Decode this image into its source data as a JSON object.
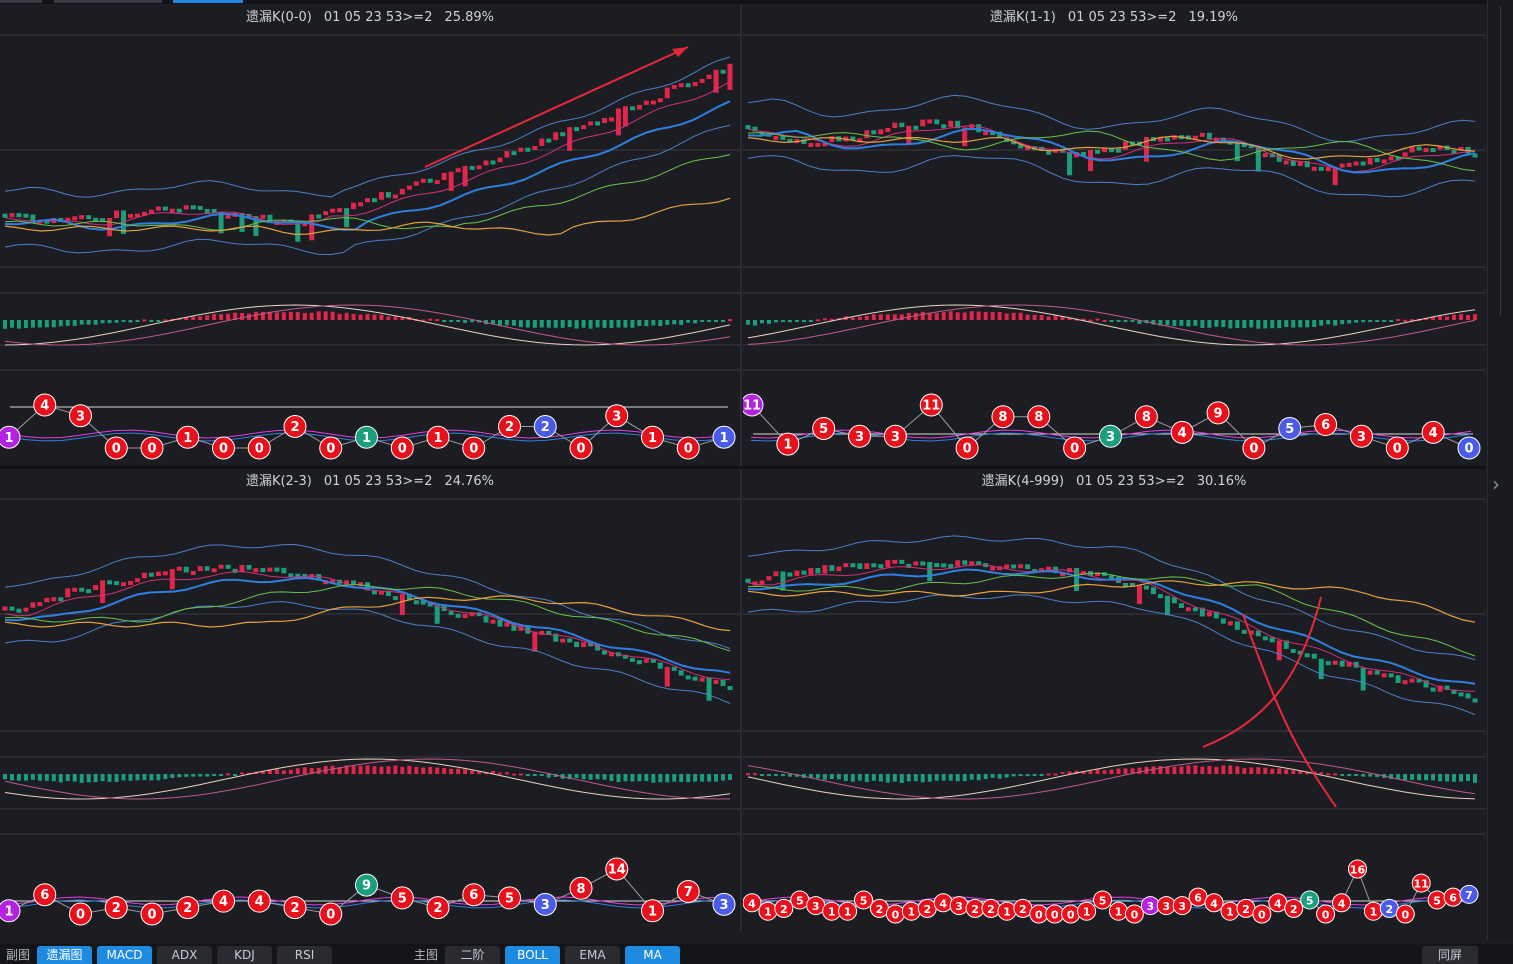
{
  "colors": {
    "bg": "#1c1d22",
    "grid": "#3a3b41",
    "up": "#e0264a",
    "down": "#1a9e7c",
    "ma_blue": "#2f7fe0",
    "ma_pink": "#d12f7a",
    "ma_green": "#6ac24a",
    "ma_orange": "#e6a23c",
    "boll": "#4b7fc6",
    "dif": "#e8d3c0",
    "dea": "#c05a8a",
    "active_tab": "#1e8be0",
    "badge_red": "#e8101a",
    "badge_blue": "#4a5be8",
    "badge_green": "#1a9e7c",
    "badge_purple": "#b322e0",
    "arrow": "#e8283a"
  },
  "panels": [
    {
      "name": "遗漏K(0-0)",
      "code": "01 05 23 53>=2",
      "pct": "25.89%",
      "trend": "up",
      "badges": [
        [
          "1",
          "purple"
        ],
        [
          "4",
          "red"
        ],
        [
          "3",
          "red"
        ],
        [
          "0",
          "red"
        ],
        [
          "0",
          "red"
        ],
        [
          "1",
          "red"
        ],
        [
          "0",
          "red"
        ],
        [
          "0",
          "red"
        ],
        [
          "2",
          "red"
        ],
        [
          "0",
          "red"
        ],
        [
          "1",
          "green"
        ],
        [
          "0",
          "red"
        ],
        [
          "1",
          "red"
        ],
        [
          "0",
          "red"
        ],
        [
          "2",
          "red"
        ],
        [
          "2",
          "blue"
        ],
        [
          "0",
          "red"
        ],
        [
          "3",
          "red"
        ],
        [
          "1",
          "red"
        ],
        [
          "0",
          "red"
        ],
        [
          "1",
          "blue"
        ]
      ]
    },
    {
      "name": "遗漏K(1-1)",
      "code": "01 05 23 53>=2",
      "pct": "19.19%",
      "trend": "flat",
      "badges": [
        [
          "11",
          "purple"
        ],
        [
          "1",
          "red"
        ],
        [
          "5",
          "red"
        ],
        [
          "3",
          "red"
        ],
        [
          "3",
          "red"
        ],
        [
          "11",
          "red"
        ],
        [
          "0",
          "red"
        ],
        [
          "8",
          "red"
        ],
        [
          "8",
          "red"
        ],
        [
          "0",
          "red"
        ],
        [
          "3",
          "green"
        ],
        [
          "8",
          "red"
        ],
        [
          "4",
          "red"
        ],
        [
          "9",
          "red"
        ],
        [
          "0",
          "red"
        ],
        [
          "5",
          "blue"
        ],
        [
          "6",
          "red"
        ],
        [
          "3",
          "red"
        ],
        [
          "0",
          "red"
        ],
        [
          "4",
          "red"
        ],
        [
          "0",
          "blue"
        ]
      ]
    },
    {
      "name": "遗漏K(2-3)",
      "code": "01 05 23 53>=2",
      "pct": "24.76%",
      "trend": "hump",
      "badges": [
        [
          "1",
          "purple"
        ],
        [
          "6",
          "red"
        ],
        [
          "0",
          "red"
        ],
        [
          "2",
          "red"
        ],
        [
          "0",
          "red"
        ],
        [
          "2",
          "red"
        ],
        [
          "4",
          "red"
        ],
        [
          "4",
          "red"
        ],
        [
          "2",
          "red"
        ],
        [
          "0",
          "red"
        ],
        [
          "9",
          "green"
        ],
        [
          "5",
          "red"
        ],
        [
          "2",
          "red"
        ],
        [
          "6",
          "red"
        ],
        [
          "5",
          "red"
        ],
        [
          "3",
          "blue"
        ],
        [
          "8",
          "red"
        ],
        [
          "14",
          "red"
        ],
        [
          "1",
          "red"
        ],
        [
          "7",
          "red"
        ],
        [
          "3",
          "blue"
        ]
      ]
    },
    {
      "name": "遗漏K(4-999)",
      "code": "01 05 23 53>=2",
      "pct": "30.16%",
      "trend": "down",
      "badges": [
        [
          "4",
          "red"
        ],
        [
          "1",
          "red"
        ],
        [
          "2",
          "red"
        ],
        [
          "5",
          "red"
        ],
        [
          "3",
          "red"
        ],
        [
          "1",
          "red"
        ],
        [
          "1",
          "red"
        ],
        [
          "5",
          "red"
        ],
        [
          "2",
          "red"
        ],
        [
          "0",
          "red"
        ],
        [
          "1",
          "red"
        ],
        [
          "2",
          "red"
        ],
        [
          "4",
          "red"
        ],
        [
          "3",
          "red"
        ],
        [
          "2",
          "red"
        ],
        [
          "2",
          "red"
        ],
        [
          "1",
          "red"
        ],
        [
          "2",
          "red"
        ],
        [
          "0",
          "red"
        ],
        [
          "0",
          "red"
        ],
        [
          "0",
          "red"
        ],
        [
          "1",
          "red"
        ],
        [
          "5",
          "red"
        ],
        [
          "1",
          "red"
        ],
        [
          "0",
          "red"
        ],
        [
          "3",
          "purple"
        ],
        [
          "3",
          "red"
        ],
        [
          "3",
          "red"
        ],
        [
          "6",
          "red"
        ],
        [
          "4",
          "red"
        ],
        [
          "1",
          "red"
        ],
        [
          "2",
          "red"
        ],
        [
          "0",
          "red"
        ],
        [
          "4",
          "red"
        ],
        [
          "2",
          "red"
        ],
        [
          "5",
          "green"
        ],
        [
          "0",
          "red"
        ],
        [
          "4",
          "red"
        ],
        [
          "16",
          "red"
        ],
        [
          "1",
          "red"
        ],
        [
          "2",
          "blue"
        ],
        [
          "0",
          "red"
        ],
        [
          "11",
          "red"
        ],
        [
          "5",
          "red"
        ],
        [
          "6",
          "red"
        ],
        [
          "7",
          "blue"
        ]
      ]
    }
  ],
  "bottombar": {
    "sub_label": "副图",
    "sub_tabs": [
      {
        "label": "遗漏图",
        "active": true
      },
      {
        "label": "MACD",
        "active": true
      },
      {
        "label": "ADX",
        "active": false
      },
      {
        "label": "KDJ",
        "active": false
      },
      {
        "label": "RSI",
        "active": false
      }
    ],
    "main_label": "主图",
    "main_tabs": [
      {
        "label": "二阶",
        "active": false
      },
      {
        "label": "BOLL",
        "active": true
      },
      {
        "label": "EMA",
        "active": false
      },
      {
        "label": "MA",
        "active": true
      }
    ],
    "right_btn": "同屏"
  }
}
